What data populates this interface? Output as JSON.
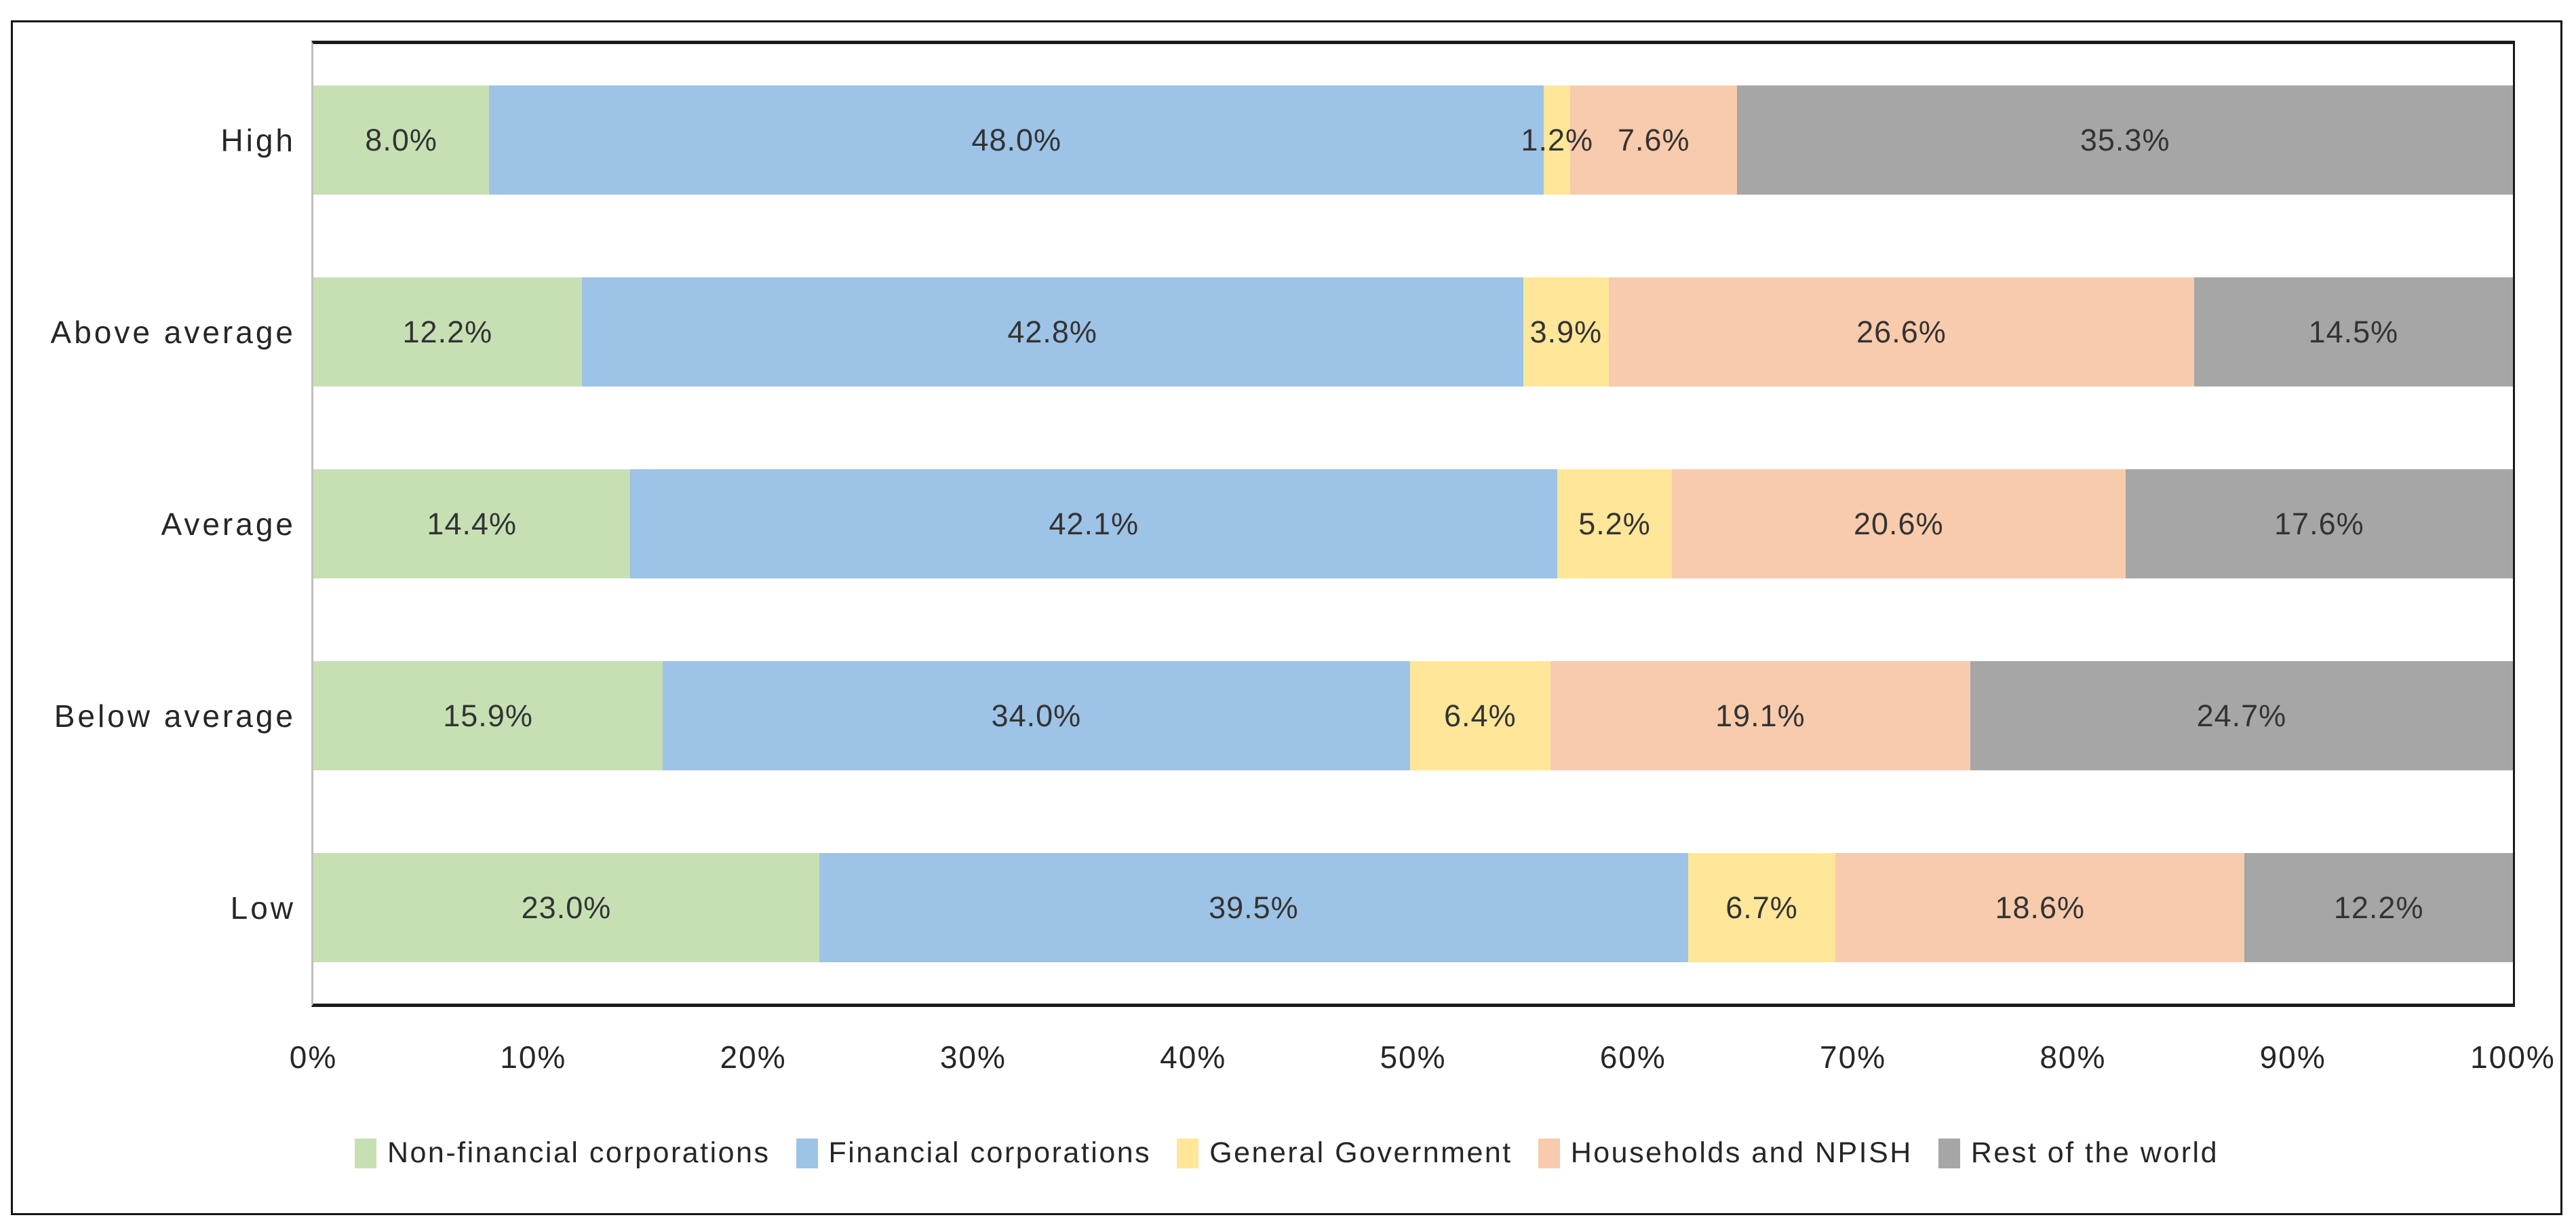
{
  "chart_data": {
    "type": "bar",
    "variant": "horizontal-stacked-100",
    "title": "",
    "categories": [
      "High",
      "Above average",
      "Average",
      "Below average",
      "Low"
    ],
    "series": [
      {
        "name": "Non-financial corporations",
        "color": "#C6E0B4",
        "values": [
          8.0,
          12.2,
          14.4,
          15.9,
          23.0
        ]
      },
      {
        "name": "Financial corporations",
        "color": "#9DC3E6",
        "values": [
          48.0,
          42.8,
          42.1,
          34.0,
          39.5
        ]
      },
      {
        "name": "General Government",
        "color": "#FFE699",
        "values": [
          1.2,
          3.9,
          5.2,
          6.4,
          6.7
        ]
      },
      {
        "name": "Households and NPISH",
        "color": "#F8CBAD",
        "values": [
          7.6,
          26.6,
          20.6,
          19.1,
          18.6
        ]
      },
      {
        "name": "Rest of the world",
        "color": "#A6A6A6",
        "values": [
          35.3,
          14.5,
          17.6,
          24.7,
          12.2
        ]
      }
    ],
    "x_ticks": [
      "0%",
      "10%",
      "20%",
      "30%",
      "40%",
      "50%",
      "60%",
      "70%",
      "80%",
      "90%",
      "100%"
    ],
    "xlim": [
      0,
      100
    ],
    "value_suffix": "%",
    "value_decimals": 1,
    "data_labels": "inside-center",
    "legend_position": "bottom",
    "grid": false
  }
}
